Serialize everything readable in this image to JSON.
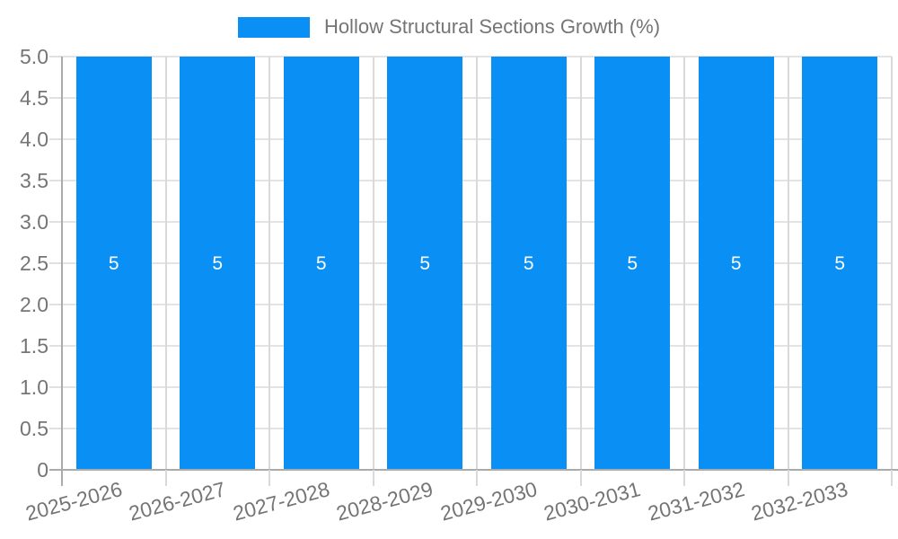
{
  "legend": {
    "label": "Hollow Structural Sections Growth (%)",
    "swatch_color": "#0a8ff5"
  },
  "chart_data": {
    "type": "bar",
    "title": "Hollow Structural Sections Growth (%)",
    "categories": [
      "2025-2026",
      "2026-2027",
      "2027-2028",
      "2028-2029",
      "2029-2030",
      "2030-2031",
      "2031-2032",
      "2032-2033"
    ],
    "series": [
      {
        "name": "Hollow Structural Sections Growth (%)",
        "values": [
          5,
          5,
          5,
          5,
          5,
          5,
          5,
          5
        ]
      }
    ],
    "value_labels": [
      "5",
      "5",
      "5",
      "5",
      "5",
      "5",
      "5",
      "5"
    ],
    "xlabel": "",
    "ylabel": "",
    "ylim": [
      0,
      5
    ],
    "ytick_labels": [
      "0",
      "0.5",
      "1.0",
      "1.5",
      "2.0",
      "2.5",
      "3.0",
      "3.5",
      "4.0",
      "4.5",
      "5.0"
    ],
    "grid": true,
    "legend_position": "top-center"
  },
  "colors": {
    "bar": "#0a8ff5",
    "axis_line": "#ababab",
    "grid_horizontal": "#e3e3e3",
    "grid_vertical": "#d9d9d9",
    "tick": "#e0e0e0",
    "label_text": "#757575",
    "value_label": "#ffffff",
    "background": "#ffffff"
  }
}
